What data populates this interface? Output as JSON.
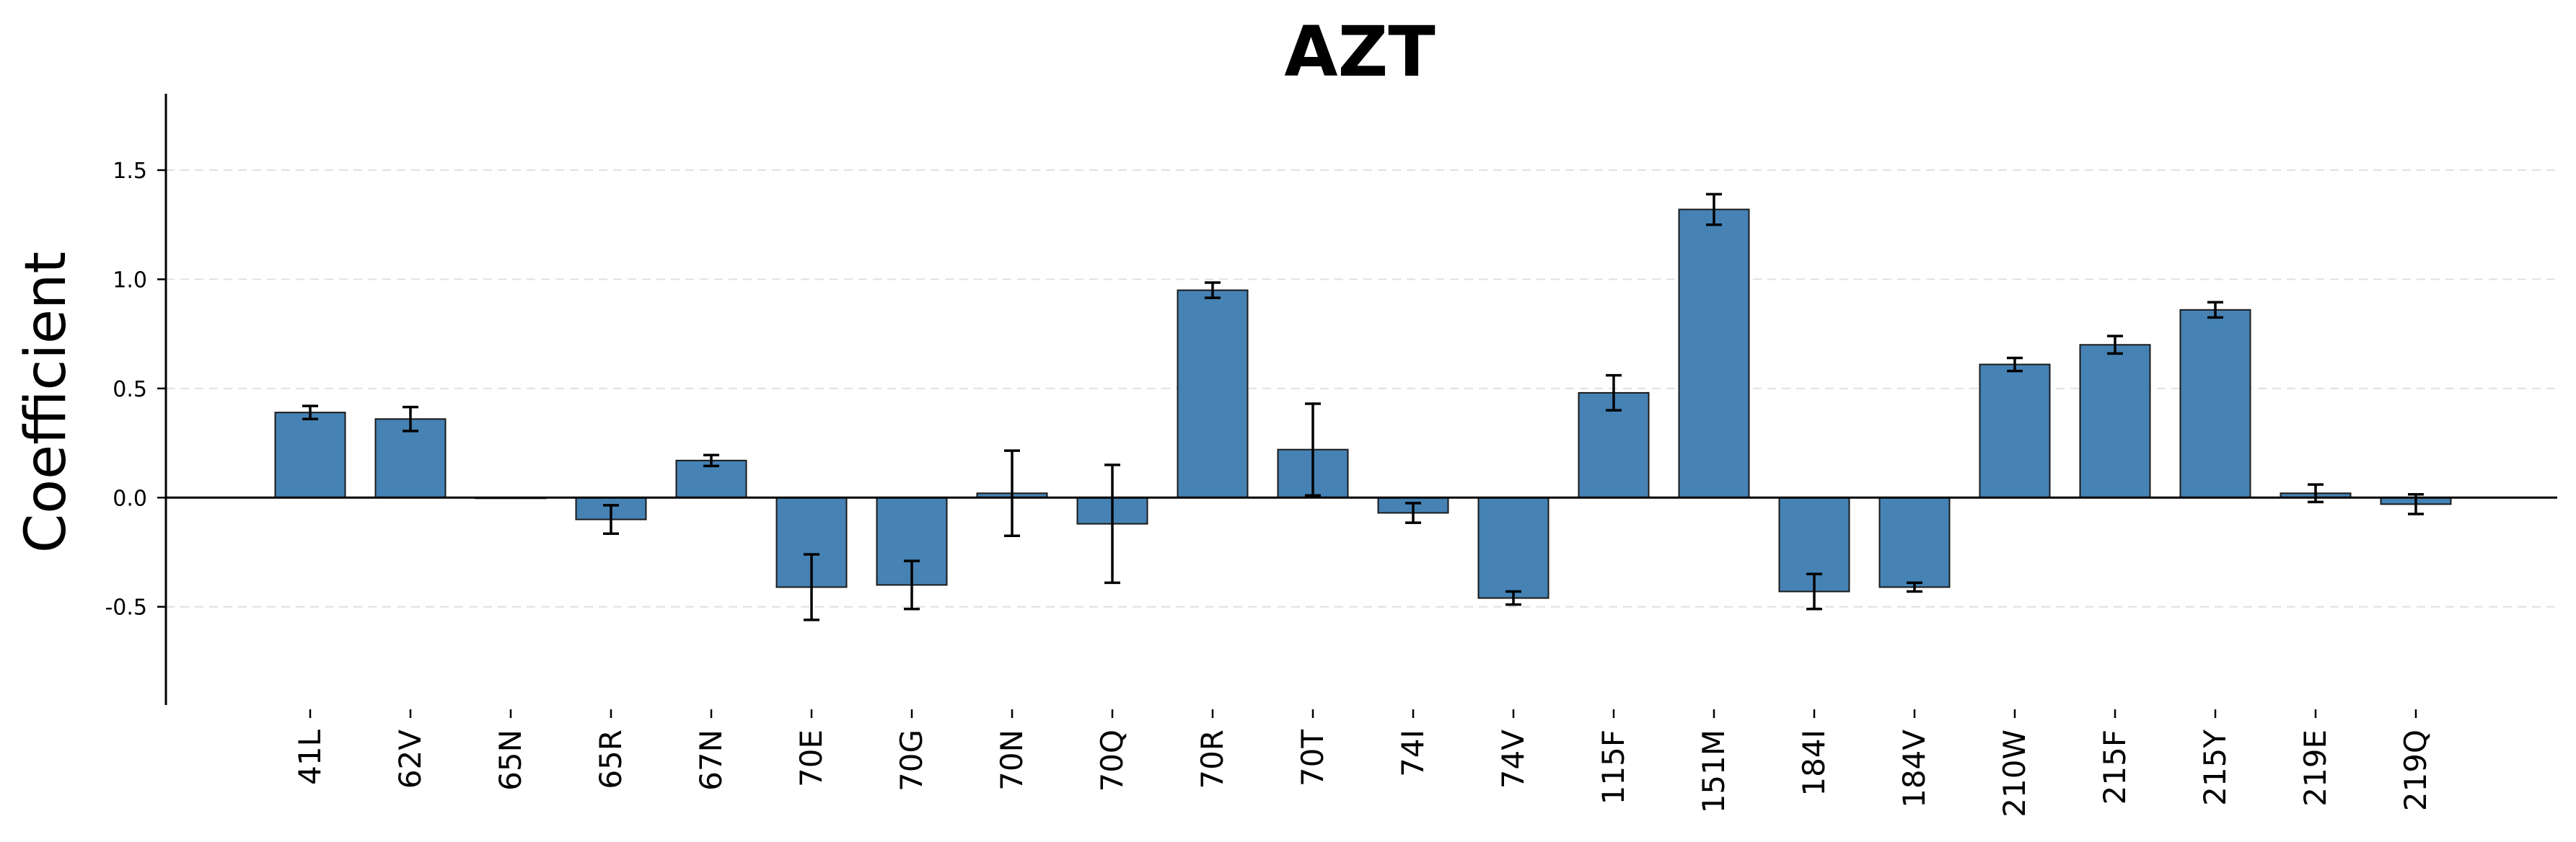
{
  "chart_data": {
    "type": "bar",
    "title": "AZT",
    "xlabel": "",
    "ylabel": "Coefficient",
    "ylim": [
      -0.95,
      1.85
    ],
    "yticks": [
      -0.5,
      0.0,
      0.5,
      1.0,
      1.5
    ],
    "ytick_labels": [
      "-0.5",
      "0.0",
      "0.5",
      "1.0",
      "1.5"
    ],
    "grid": "y-dashed",
    "bar_color": "#4682b4",
    "categories": [
      "41L",
      "62V",
      "65N",
      "65R",
      "67N",
      "70E",
      "70G",
      "70N",
      "70Q",
      "70R",
      "70T",
      "74I",
      "74V",
      "115F",
      "151M",
      "184I",
      "184V",
      "210W",
      "215F",
      "215Y",
      "219E",
      "219Q"
    ],
    "values": [
      0.39,
      0.36,
      0.0,
      -0.1,
      0.17,
      -0.41,
      -0.4,
      0.02,
      -0.12,
      0.95,
      0.22,
      -0.07,
      -0.46,
      0.48,
      1.32,
      -0.43,
      -0.41,
      0.61,
      0.7,
      0.86,
      0.02,
      -0.03
    ],
    "errors": [
      0.03,
      0.055,
      0.0,
      0.065,
      0.025,
      0.15,
      0.11,
      0.195,
      0.27,
      0.035,
      0.21,
      0.045,
      0.03,
      0.08,
      0.07,
      0.08,
      0.02,
      0.03,
      0.04,
      0.035,
      0.04,
      0.045
    ]
  }
}
